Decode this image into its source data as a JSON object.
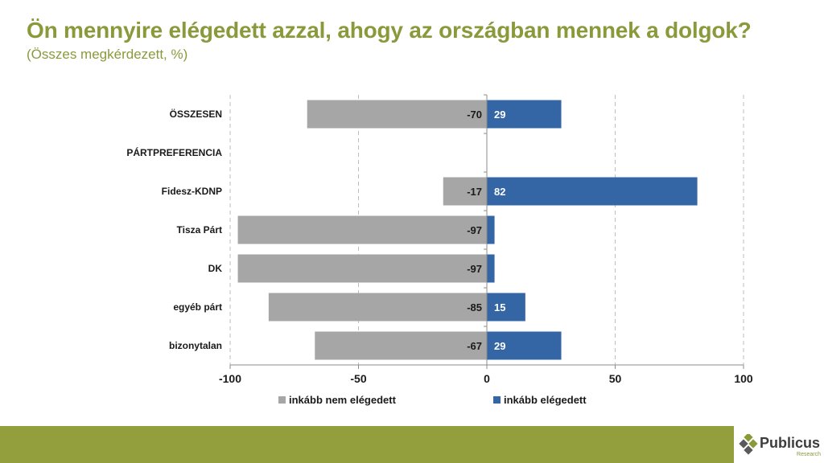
{
  "header": {
    "title": "Ön mennyire elégedett azzal, ahogy az országban mennek a dolgok?",
    "subtitle": "(Összes megkérdezett, %)"
  },
  "chart_data": {
    "type": "bar",
    "orientation": "horizontal",
    "stacked": "diverging",
    "categories": [
      "ÖSSZESEN",
      "PÁRTPREFERENCIA",
      "Fidesz-KDNP",
      "Tisza Párt",
      "DK",
      "egyéb párt",
      "bizonytalan"
    ],
    "series": [
      {
        "name": "inkább nem elégedett",
        "color": "#a6a6a6",
        "values": [
          -70,
          null,
          -17,
          -97,
          -97,
          -85,
          -67
        ]
      },
      {
        "name": "inkább elégedett",
        "color": "#3465a4",
        "values": [
          29,
          null,
          82,
          3,
          3,
          15,
          29
        ]
      }
    ],
    "data_labels": [
      [
        "-70",
        "",
        "-17",
        "-97",
        "-97",
        "-85",
        "-67"
      ],
      [
        "29",
        "",
        "82",
        "",
        "",
        "15",
        "29"
      ]
    ],
    "xlim": [
      -100,
      100
    ],
    "xticks": [
      -100,
      -50,
      0,
      50,
      100
    ],
    "xtick_labels": [
      "-100",
      "-50",
      "0",
      "50",
      "100"
    ],
    "grid": "vertical dashed",
    "legend_position": "bottom"
  },
  "brand": {
    "name": "Publicus",
    "tagline": "Research",
    "accent": "#8a9a3b",
    "footer_color": "#939e3d"
  }
}
